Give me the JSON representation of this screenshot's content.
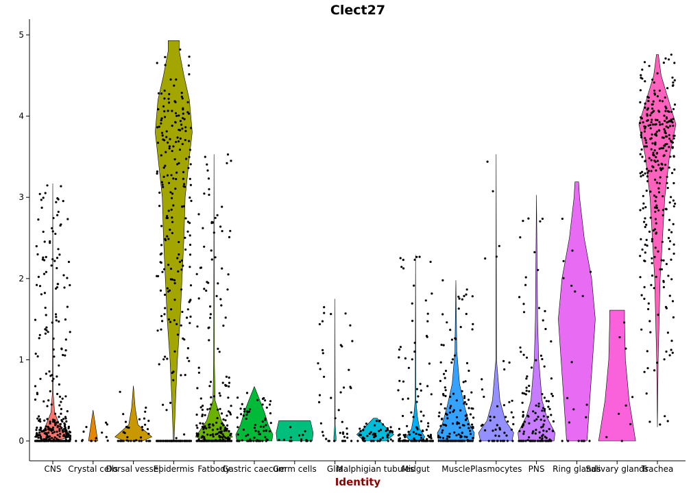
{
  "chart_data": {
    "type": "violin",
    "title": "Clect27",
    "xlabel": "Identity",
    "ylabel": "",
    "ylim": [
      -0.25,
      5.2
    ],
    "yticks": [
      0,
      1,
      2,
      3,
      4,
      5
    ],
    "grid": false,
    "legend": "none",
    "categories": [
      {
        "name": "CNS",
        "color": "#F8766D",
        "max": 3.17,
        "n": 360,
        "profile": [
          [
            0,
            0.06
          ],
          [
            0.05,
            1
          ],
          [
            0.15,
            0.45
          ],
          [
            0.35,
            0.1
          ],
          [
            0.6,
            0.02
          ],
          [
            3.17,
            0
          ]
        ]
      },
      {
        "name": "Crystal cells",
        "color": "#E58700",
        "max": 0.38,
        "n": 14,
        "profile": [
          [
            0,
            0.25
          ],
          [
            0.38,
            0
          ]
        ]
      },
      {
        "name": "Dorsal vessel",
        "color": "#C99800",
        "max": 0.68,
        "n": 40,
        "profile": [
          [
            0,
            0.5
          ],
          [
            0.05,
            1
          ],
          [
            0.2,
            0.25
          ],
          [
            0.4,
            0.1
          ],
          [
            0.68,
            0
          ]
        ]
      },
      {
        "name": "Epidermis",
        "color": "#A3A500",
        "max": 4.93,
        "n": 300,
        "profile": [
          [
            0,
            0.02
          ],
          [
            0.5,
            0.1
          ],
          [
            1,
            0.2
          ],
          [
            1.5,
            0.35
          ],
          [
            2,
            0.45
          ],
          [
            2.5,
            0.55
          ],
          [
            3,
            0.62
          ],
          [
            3.5,
            0.85
          ],
          [
            3.8,
            1
          ],
          [
            4.2,
            0.85
          ],
          [
            4.5,
            0.55
          ],
          [
            4.8,
            0.3
          ],
          [
            4.93,
            0.3
          ]
        ]
      },
      {
        "name": "Fatbody",
        "color": "#6BB100",
        "max": 3.53,
        "n": 260,
        "profile": [
          [
            0,
            0.3
          ],
          [
            0.05,
            1
          ],
          [
            0.25,
            0.4
          ],
          [
            0.5,
            0.06
          ],
          [
            1,
            0.02
          ],
          [
            3.53,
            0
          ]
        ]
      },
      {
        "name": "Gastric caecum",
        "color": "#00BA38",
        "max": 0.67,
        "n": 75,
        "profile": [
          [
            0,
            0.95
          ],
          [
            0.08,
            1
          ],
          [
            0.2,
            0.75
          ],
          [
            0.35,
            0.55
          ],
          [
            0.5,
            0.3
          ],
          [
            0.67,
            0
          ]
        ]
      },
      {
        "name": "Germ cells",
        "color": "#00BF7D",
        "max": 0.25,
        "n": 16,
        "profile": [
          [
            0,
            0.95
          ],
          [
            0.1,
            1
          ],
          [
            0.2,
            0.9
          ],
          [
            0.25,
            0.85
          ]
        ]
      },
      {
        "name": "Glia",
        "color": "#00C0AF",
        "max": 1.75,
        "n": 45,
        "profile": [
          [
            0,
            0.06
          ],
          [
            0.05,
            0.06
          ],
          [
            0.2,
            0.01
          ],
          [
            1.75,
            0
          ]
        ]
      },
      {
        "name": "Malphigian tubules",
        "color": "#00BCD8",
        "max": 0.28,
        "n": 60,
        "profile": [
          [
            0,
            0.6
          ],
          [
            0.08,
            1
          ],
          [
            0.16,
            0.6
          ],
          [
            0.28,
            0.1
          ]
        ]
      },
      {
        "name": "Midgut",
        "color": "#00B0F6",
        "max": 2.29,
        "n": 130,
        "profile": [
          [
            0,
            0.28
          ],
          [
            0.05,
            0.5
          ],
          [
            0.15,
            0.22
          ],
          [
            0.3,
            0.1
          ],
          [
            0.5,
            0.02
          ],
          [
            2.29,
            0
          ]
        ]
      },
      {
        "name": "Muscle",
        "color": "#35A2FF",
        "max": 1.98,
        "n": 170,
        "profile": [
          [
            0,
            0.95
          ],
          [
            0.1,
            1
          ],
          [
            0.2,
            0.75
          ],
          [
            0.4,
            0.5
          ],
          [
            0.7,
            0.2
          ],
          [
            1.1,
            0.05
          ],
          [
            1.98,
            0
          ]
        ]
      },
      {
        "name": "Plasmocytes",
        "color": "#9590FF",
        "max": 3.53,
        "n": 50,
        "profile": [
          [
            0,
            0.85
          ],
          [
            0.1,
            0.95
          ],
          [
            0.25,
            0.5
          ],
          [
            0.5,
            0.2
          ],
          [
            1,
            0.02
          ],
          [
            3.53,
            0
          ]
        ]
      },
      {
        "name": "PNS",
        "color": "#C77CFF",
        "max": 3.03,
        "n": 140,
        "profile": [
          [
            0,
            0.95
          ],
          [
            0.1,
            1
          ],
          [
            0.3,
            0.55
          ],
          [
            0.5,
            0.3
          ],
          [
            1,
            0.12
          ],
          [
            1.5,
            0.06
          ],
          [
            2,
            0.04
          ],
          [
            3.03,
            0
          ]
        ]
      },
      {
        "name": "Ring glands",
        "color": "#E76BF3",
        "max": 3.19,
        "n": 22,
        "profile": [
          [
            0,
            0.55
          ],
          [
            0.5,
            0.7
          ],
          [
            1,
            0.85
          ],
          [
            1.5,
            1
          ],
          [
            2,
            0.8
          ],
          [
            2.5,
            0.4
          ],
          [
            3,
            0.15
          ],
          [
            3.19,
            0.1
          ]
        ]
      },
      {
        "name": "Salivary glands",
        "color": "#FA62DB",
        "max": 1.61,
        "n": 9,
        "profile": [
          [
            0,
            1
          ],
          [
            0.5,
            0.65
          ],
          [
            1,
            0.45
          ],
          [
            1.5,
            0.4
          ],
          [
            1.61,
            0.4
          ]
        ]
      },
      {
        "name": "Trachea",
        "color": "#FF62BC",
        "max": 4.76,
        "n": 320,
        "profile": [
          [
            0.17,
            0
          ],
          [
            1,
            0.04
          ],
          [
            2,
            0.15
          ],
          [
            3,
            0.4
          ],
          [
            3.5,
            0.65
          ],
          [
            3.9,
            1
          ],
          [
            4.2,
            0.6
          ],
          [
            4.5,
            0.2
          ],
          [
            4.76,
            0.05
          ]
        ]
      }
    ]
  }
}
